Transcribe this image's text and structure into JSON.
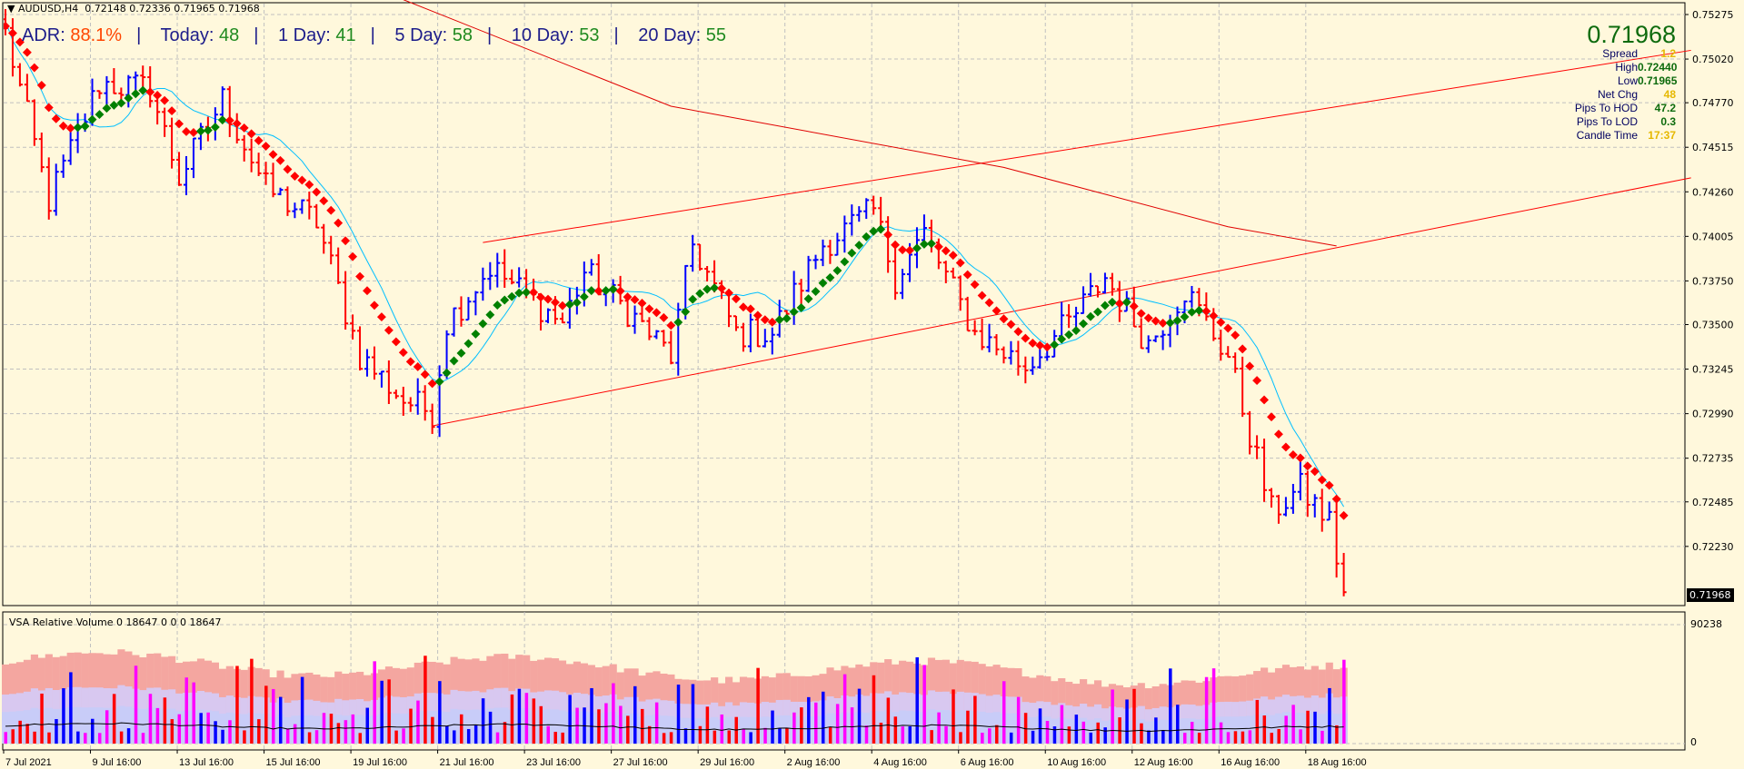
{
  "header": {
    "symbol": "AUDUSD,H4",
    "open": "0.72148",
    "high": "0.72336",
    "low": "0.71965",
    "close": "0.71968"
  },
  "adr": {
    "adr_label": "ADR:",
    "adr_value": "88.1%",
    "today_label": "Today:",
    "today_value": "48",
    "d1_label": "1 Day:",
    "d1_value": "41",
    "d5_label": "5 Day:",
    "d5_value": "58",
    "d10_label": "10 Day:",
    "d10_value": "53",
    "d20_label": "20 Day:",
    "d20_value": "55",
    "separator": "|"
  },
  "info": {
    "price": "0.71968",
    "rows": [
      {
        "label": "Spread",
        "value": "1.2",
        "color": "yellow"
      },
      {
        "label": "High",
        "value": "0.72440",
        "color": "green"
      },
      {
        "label": "Low",
        "value": "0.71965",
        "color": "green"
      },
      {
        "label": "Net Chg",
        "value": "48",
        "color": "yellow"
      },
      {
        "label": "Pips To HOD",
        "value": "47.2",
        "color": "green"
      },
      {
        "label": "Pips To LOD",
        "value": "0.3",
        "color": "green"
      },
      {
        "label": "Candle Time",
        "value": "17:37",
        "color": "yellow"
      }
    ]
  },
  "current_price_label": "0.71968",
  "volume_panel": {
    "title": "VSA Relative Volume 0 18647 0 0 0 18647",
    "max_label": "90238",
    "min_label": "0"
  },
  "colors": {
    "up": "#0000ff",
    "down": "#ff0000",
    "ma_up": "#008000",
    "ma_down": "#ff0000",
    "ma_fast": "#00bfff",
    "ma_slow": "#e00000",
    "background": "#fff8dc"
  },
  "chart_data": {
    "type": "ohlc-bar",
    "timeframe": "H4",
    "y_ticks": [
      "0.75275",
      "0.75020",
      "0.74770",
      "0.74515",
      "0.74260",
      "0.74005",
      "0.73750",
      "0.73500",
      "0.73245",
      "0.72990",
      "0.72735",
      "0.72485",
      "0.72230"
    ],
    "ylim": [
      0.719,
      0.7535
    ],
    "x_ticks": [
      "7 Jul 2021",
      "9 Jul 16:00",
      "13 Jul 16:00",
      "15 Jul 16:00",
      "19 Jul 16:00",
      "21 Jul 16:00",
      "23 Jul 16:00",
      "27 Jul 16:00",
      "29 Jul 16:00",
      "2 Aug 16:00",
      "4 Aug 16:00",
      "6 Aug 16:00",
      "10 Aug 16:00",
      "12 Aug 16:00",
      "16 Aug 16:00",
      "18 Aug 16:00"
    ],
    "bars_per_tick": 12,
    "close_path": [
      [
        0,
        0.7517
      ],
      [
        6,
        0.7421
      ],
      [
        13,
        0.7488
      ],
      [
        20,
        0.7485
      ],
      [
        24,
        0.7434
      ],
      [
        30,
        0.7479
      ],
      [
        36,
        0.7428
      ],
      [
        43,
        0.7409
      ],
      [
        49,
        0.7332
      ],
      [
        55,
        0.7307
      ],
      [
        59,
        0.73
      ],
      [
        61,
        0.7351
      ],
      [
        67,
        0.7383
      ],
      [
        77,
        0.7351
      ],
      [
        80,
        0.738
      ],
      [
        86,
        0.7358
      ],
      [
        92,
        0.7332
      ],
      [
        95,
        0.7396
      ],
      [
        101,
        0.7345
      ],
      [
        106,
        0.7345
      ],
      [
        113,
        0.7396
      ],
      [
        120,
        0.7415
      ],
      [
        123,
        0.7377
      ],
      [
        127,
        0.7402
      ],
      [
        134,
        0.7345
      ],
      [
        141,
        0.7326
      ],
      [
        147,
        0.7351
      ],
      [
        152,
        0.7377
      ],
      [
        158,
        0.7339
      ],
      [
        163,
        0.737
      ],
      [
        169,
        0.7332
      ],
      [
        175,
        0.7243
      ],
      [
        179,
        0.7256
      ],
      [
        183,
        0.7237
      ],
      [
        185,
        0.7197
      ]
    ],
    "trendlines": [
      {
        "from": [
          59,
          0.7292
        ],
        "to": [
          233,
          0.7434
        ]
      },
      {
        "from": [
          66,
          0.7397
        ],
        "to": [
          233,
          0.7507
        ]
      }
    ],
    "slow_ma": [
      [
        55,
        0.7536
      ],
      [
        92,
        0.7475
      ],
      [
        138,
        0.744
      ],
      [
        169,
        0.7406
      ],
      [
        184,
        0.7395
      ]
    ],
    "volume_max": 90238
  }
}
